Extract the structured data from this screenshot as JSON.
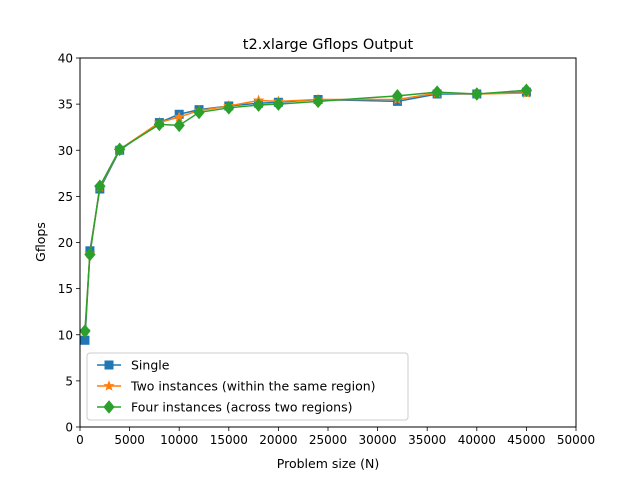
{
  "chart_data": {
    "type": "line",
    "title": "t2.xlarge Gflops Output",
    "xlabel": "Problem size (N)",
    "ylabel": "Gflops",
    "xlim": [
      0,
      50000
    ],
    "ylim": [
      0,
      40
    ],
    "xticks": [
      0,
      5000,
      10000,
      15000,
      20000,
      25000,
      30000,
      35000,
      40000,
      45000,
      50000
    ],
    "yticks": [
      0,
      5,
      10,
      15,
      20,
      25,
      30,
      35,
      40
    ],
    "grid": false,
    "legend_position": "lower left",
    "series": [
      {
        "name": "Single",
        "color": "#1f77b4",
        "marker": "square",
        "x": [
          500,
          1000,
          2000,
          4000,
          8000,
          10000,
          12000,
          15000,
          18000,
          20000,
          24000,
          32000,
          36000,
          40000,
          45000
        ],
        "y": [
          9.4,
          19.1,
          25.8,
          30.0,
          33.0,
          33.9,
          34.4,
          34.8,
          35.1,
          35.2,
          35.5,
          35.3,
          36.1,
          36.1,
          36.3
        ]
      },
      {
        "name": "Two instances (within the same region)",
        "color": "#ff7f0e",
        "marker": "star",
        "x": [
          500,
          1000,
          2000,
          4000,
          8000,
          10000,
          12000,
          15000,
          18000,
          20000,
          24000,
          32000,
          36000,
          40000,
          45000
        ],
        "y": [
          10.4,
          18.8,
          26.0,
          30.1,
          33.0,
          33.6,
          34.3,
          34.8,
          35.4,
          35.3,
          35.5,
          35.5,
          36.2,
          36.1,
          36.2
        ]
      },
      {
        "name": "Four instances (across two regions)",
        "color": "#2ca02c",
        "marker": "diamond",
        "x": [
          500,
          1000,
          2000,
          4000,
          8000,
          10000,
          12000,
          15000,
          18000,
          20000,
          24000,
          32000,
          36000,
          40000,
          45000
        ],
        "y": [
          10.4,
          18.7,
          26.1,
          30.1,
          32.8,
          32.7,
          34.1,
          34.6,
          34.9,
          35.0,
          35.3,
          35.9,
          36.3,
          36.1,
          36.5
        ]
      }
    ]
  }
}
